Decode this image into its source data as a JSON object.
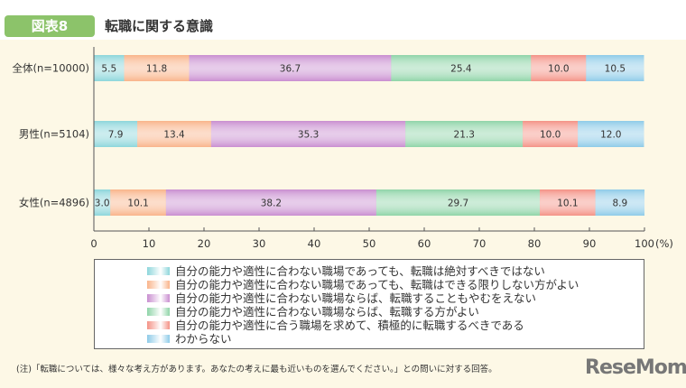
{
  "figure_tag": "図表8",
  "title": "転職に関する意識",
  "logo": "ReseMom",
  "note": "(注)「転職については、様々な考え方があります。あなたの考えに最も近いものを選んでください。」との問いに対する回答。",
  "chart_data": {
    "type": "bar",
    "orientation": "horizontal-stacked",
    "categories": [
      "全体(n=10000)",
      "男性(n=5104)",
      "女性(n=4896)"
    ],
    "xlim": [
      0,
      100
    ],
    "xticks": [
      "0",
      "10",
      "20",
      "30",
      "40",
      "50",
      "60",
      "70",
      "80",
      "90",
      "100"
    ],
    "xunit": "(%)",
    "legend_position": "bottom",
    "series": [
      {
        "name": "自分の能力や適性に合わない職場であっても、転職は絶対すべきではない",
        "color": "#8dd6db",
        "values": [
          5.5,
          7.9,
          3.0
        ]
      },
      {
        "name": "自分の能力や適性に合わない職場であっても、転職はできる限りしない方がよい",
        "color": "#f9b48a",
        "values": [
          11.8,
          13.4,
          10.1
        ]
      },
      {
        "name": "自分の能力や適性に合わない職場ならば、転職することもやむをえない",
        "color": "#c98ed0",
        "values": [
          36.7,
          35.3,
          38.2
        ]
      },
      {
        "name": "自分の能力や適性に合わない職場ならば、転職する方がよい",
        "color": "#8fd4a8",
        "values": [
          25.4,
          21.3,
          29.7
        ]
      },
      {
        "name": "自分の能力や適性に合う職場を求めて、積極的に転職するべきである",
        "color": "#f49286",
        "values": [
          10.0,
          10.0,
          10.1
        ]
      },
      {
        "name": "わからない",
        "color": "#8ecbe8",
        "values": [
          10.5,
          12.0,
          8.9
        ]
      }
    ]
  }
}
